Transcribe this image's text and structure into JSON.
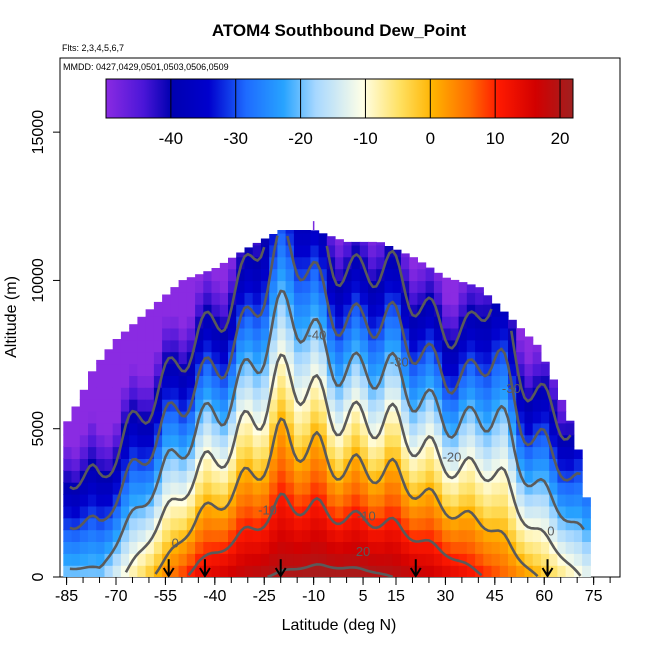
{
  "chart_data": {
    "type": "heatmap",
    "title": "ATOM4 Southbound Dew_Point",
    "subtitle_flights": "Flts: 2,3,4,5,6,7",
    "subtitle_dates": "MMDD: 0427,0429,0501,0503,0506,0509",
    "xlabel": "Latitude (deg N)",
    "ylabel": "Altitude (m)",
    "xlim": [
      -87,
      83
    ],
    "ylim": [
      0,
      17500
    ],
    "x_ticks": [
      -85,
      -70,
      -55,
      -40,
      -25,
      -10,
      5,
      15,
      30,
      45,
      60,
      75
    ],
    "x_tick_labels": [
      "-85",
      "-70",
      "-55",
      "-40",
      "-25",
      "-10",
      "5",
      "15",
      "30",
      "45",
      "60",
      "75"
    ],
    "y_ticks": [
      0,
      5000,
      10000,
      15000
    ],
    "y_tick_labels": [
      "0",
      "5000",
      "10000",
      "15000"
    ],
    "colorbar": {
      "range": [
        -50,
        22
      ],
      "ticks": [
        -40,
        -30,
        -20,
        -10,
        0,
        10,
        20
      ],
      "tick_labels": [
        "-40",
        "-30",
        "-20",
        "-10",
        "0",
        "10",
        "20"
      ]
    },
    "contour_labels": [
      {
        "text": "-40",
        "lat": -9,
        "alt": 8000
      },
      {
        "text": "-30",
        "lat": 16,
        "alt": 7100
      },
      {
        "text": "-30",
        "lat": 50,
        "alt": 6200
      },
      {
        "text": "-20",
        "lat": 32,
        "alt": 3900
      },
      {
        "text": "-10",
        "lat": -24,
        "alt": 2100
      },
      {
        "text": "-10",
        "lat": 6,
        "alt": 1900
      },
      {
        "text": "0",
        "lat": -52,
        "alt": 1000
      },
      {
        "text": "0",
        "lat": 62,
        "alt": 1400
      },
      {
        "text": "20",
        "lat": 5,
        "alt": 700
      }
    ],
    "flight_markers_lat": [
      -54,
      -43,
      -20,
      21,
      61
    ],
    "profile_envelope": [
      {
        "lat": -85,
        "top": 5200
      },
      {
        "lat": -81,
        "top": 6000
      },
      {
        "lat": -77,
        "top": 7000
      },
      {
        "lat": -70,
        "top": 8000
      },
      {
        "lat": -60,
        "top": 9000
      },
      {
        "lat": -50,
        "top": 10000
      },
      {
        "lat": -40,
        "top": 10400
      },
      {
        "lat": -30,
        "top": 11100
      },
      {
        "lat": -20,
        "top": 11700
      },
      {
        "lat": -10,
        "top": 11700
      },
      {
        "lat": 0,
        "top": 11300
      },
      {
        "lat": 10,
        "top": 11300
      },
      {
        "lat": 20,
        "top": 10800
      },
      {
        "lat": 30,
        "top": 10100
      },
      {
        "lat": 40,
        "top": 9800
      },
      {
        "lat": 50,
        "top": 8700
      },
      {
        "lat": 58,
        "top": 7800
      },
      {
        "lat": 63,
        "top": 6600
      },
      {
        "lat": 68,
        "top": 5200
      },
      {
        "lat": 71,
        "top": 4000
      },
      {
        "lat": 73,
        "top": 2500
      },
      {
        "lat": 73,
        "top": 0
      }
    ]
  }
}
